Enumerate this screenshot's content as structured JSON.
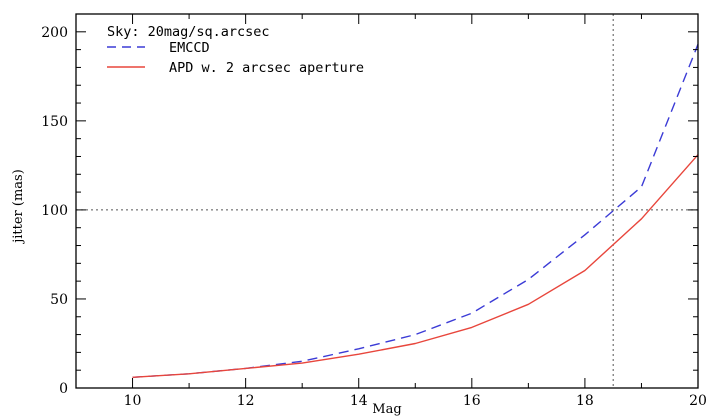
{
  "chart_data": {
    "type": "line",
    "title": "",
    "xlabel": "Mag",
    "ylabel": "jitter (mas)",
    "xlim": [
      9,
      20
    ],
    "ylim": [
      0,
      210
    ],
    "xticks": [
      10,
      12,
      14,
      16,
      18,
      20
    ],
    "yticks": [
      0,
      50,
      100,
      150,
      200
    ],
    "grid": false,
    "legend": {
      "placement": "top-left",
      "header": "Sky: 20mag/sq.arcsec"
    },
    "reference_lines": [
      {
        "orientation": "horizontal",
        "value": 100,
        "style": "dotted"
      },
      {
        "orientation": "vertical",
        "value": 18.5,
        "style": "dotted"
      }
    ],
    "series": [
      {
        "name": "EMCCD",
        "style": "dashed",
        "color": "#3b3bd6",
        "x": [
          10,
          11,
          12,
          13,
          14,
          15,
          16,
          17,
          18,
          19,
          20
        ],
        "y": [
          6,
          8,
          11,
          15,
          22,
          30,
          42,
          61,
          86,
          113,
          193
        ]
      },
      {
        "name": "APD w. 2 arcsec aperture",
        "style": "solid",
        "color": "#e8463c",
        "x": [
          10,
          11,
          12,
          13,
          14,
          15,
          16,
          17,
          18,
          19,
          20
        ],
        "y": [
          6,
          8,
          11,
          14,
          19,
          25,
          34,
          47,
          66,
          95,
          131
        ]
      }
    ]
  }
}
